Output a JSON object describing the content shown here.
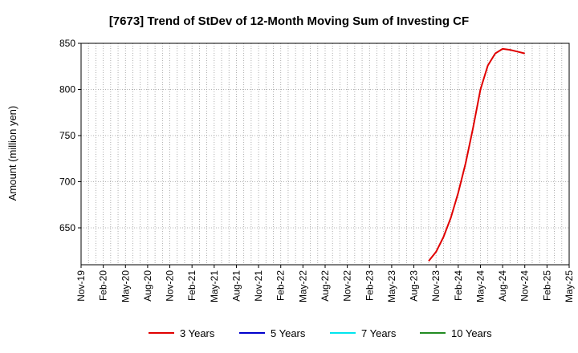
{
  "chart_data": {
    "type": "line",
    "title": "[7673]  Trend of StDev of 12-Month Moving Sum of Investing CF",
    "ylabel": "Amount (million yen)",
    "xlabel": "",
    "ylim": [
      610,
      850
    ],
    "yticks": [
      650,
      700,
      750,
      800,
      850
    ],
    "xlim": [
      "2019-11",
      "2025-05"
    ],
    "xtick_labels": [
      "Nov-19",
      "Feb-20",
      "May-20",
      "Aug-20",
      "Nov-20",
      "Feb-21",
      "May-21",
      "Aug-21",
      "Nov-21",
      "Feb-22",
      "May-22",
      "Aug-22",
      "Nov-22",
      "Feb-23",
      "May-23",
      "Aug-23",
      "Nov-23",
      "Feb-24",
      "May-24",
      "Aug-24",
      "Nov-24",
      "Feb-25",
      "May-25"
    ],
    "grid": true,
    "legend_position": "bottom",
    "series": [
      {
        "name": "3 Years",
        "color": "#e00000",
        "x": [
          "2023-10",
          "2023-11",
          "2023-12",
          "2024-01",
          "2024-02",
          "2024-03",
          "2024-04",
          "2024-05",
          "2024-06",
          "2024-07",
          "2024-08",
          "2024-09",
          "2024-10",
          "2024-11"
        ],
        "y": [
          614,
          624,
          640,
          661,
          688,
          720,
          758,
          800,
          826,
          839,
          844,
          843,
          841,
          839
        ]
      },
      {
        "name": "5 Years",
        "color": "#0000cc",
        "x": [],
        "y": []
      },
      {
        "name": "7 Years",
        "color": "#00e5ee",
        "x": [],
        "y": []
      },
      {
        "name": "10 Years",
        "color": "#228b22",
        "x": [],
        "y": []
      }
    ]
  }
}
